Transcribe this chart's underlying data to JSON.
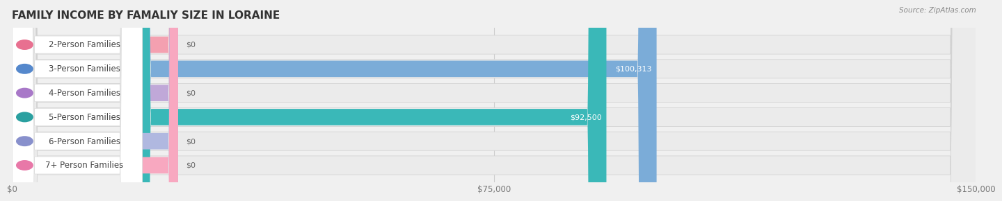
{
  "title": "FAMILY INCOME BY FAMALIY SIZE IN LORAINE",
  "source": "Source: ZipAtlas.com",
  "categories": [
    "2-Person Families",
    "3-Person Families",
    "4-Person Families",
    "5-Person Families",
    "6-Person Families",
    "7+ Person Families"
  ],
  "values": [
    0,
    100313,
    0,
    92500,
    0,
    0
  ],
  "bar_colors": [
    "#f4a0b0",
    "#7bacd8",
    "#c0a8d8",
    "#3ab8b8",
    "#b0b8e0",
    "#f8a8c0"
  ],
  "icon_colors": [
    "#e87090",
    "#5588cc",
    "#a878c8",
    "#2aa0a0",
    "#8890cc",
    "#e878a8"
  ],
  "xlim": [
    0,
    150000
  ],
  "xticks": [
    0,
    75000,
    150000
  ],
  "xticklabels": [
    "$0",
    "$75,000",
    "$150,000"
  ],
  "value_labels": [
    "$0",
    "$100,313",
    "$0",
    "$92,500",
    "$0",
    "$0"
  ],
  "bg_color": "#f0f0f0",
  "row_bg": "#e8e8e8",
  "title_fontsize": 11,
  "tick_fontsize": 8.5,
  "label_fontsize": 8.5,
  "value_fontsize": 8
}
